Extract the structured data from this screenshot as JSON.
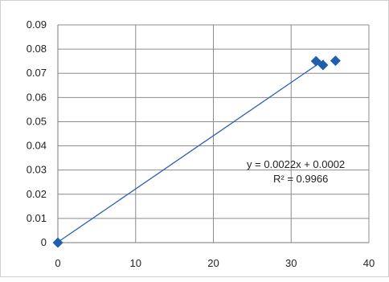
{
  "chart_data": {
    "type": "scatter",
    "title": "",
    "xlabel": "",
    "ylabel": "",
    "xlim": [
      0,
      40
    ],
    "ylim": [
      0,
      0.09
    ],
    "x_ticks": [
      "0",
      "10",
      "20",
      "30",
      "40"
    ],
    "y_ticks": [
      "0",
      "0.01",
      "0.02",
      "0.03",
      "0.04",
      "0.05",
      "0.06",
      "0.07",
      "0.08",
      "0.09"
    ],
    "grid": true,
    "legend": "none",
    "series": [
      {
        "points": [
          {
            "x": 0,
            "y": 0.0
          },
          {
            "x": 33.2,
            "y": 0.075
          },
          {
            "x": 34.1,
            "y": 0.0734
          },
          {
            "x": 35.7,
            "y": 0.0752
          }
        ],
        "marker": "diamond",
        "color": "#1f5fad"
      }
    ],
    "trendline": {
      "type": "linear",
      "slope": 0.0022,
      "intercept": 0.0002,
      "x_range": [
        0,
        34.2
      ],
      "color": "#2b63b0"
    },
    "annotations": {
      "equation": "y = 0.0022x + 0.0002",
      "r_squared": "R² = 0.9966"
    }
  }
}
